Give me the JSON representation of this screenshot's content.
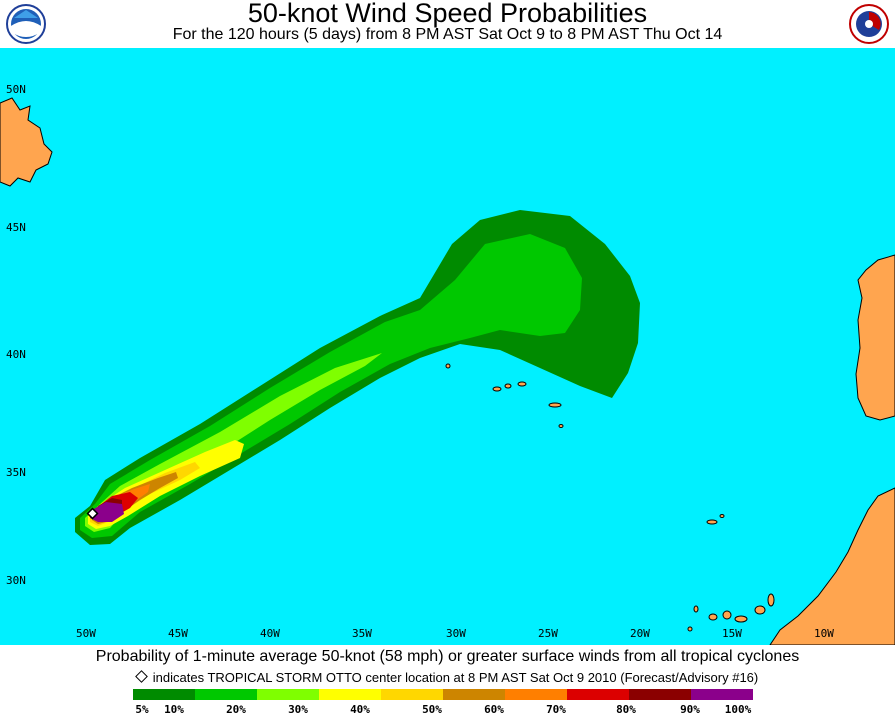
{
  "title": "50-knot Wind Speed Probabilities",
  "subtitle": "For the 120 hours (5 days) from 8 PM AST Sat Oct 9 to 8 PM AST Thu Oct 14",
  "map": {
    "ocean_color": "#00f0ff",
    "land_color": "#ffa54f",
    "latitudes": [
      "50N",
      "45N",
      "40N",
      "35N",
      "30N"
    ],
    "longitudes": [
      "50W",
      "45W",
      "40W",
      "35W",
      "30W",
      "25W",
      "20W",
      "15W",
      "10W"
    ]
  },
  "caption": "Probability of 1-minute average 50-knot (58 mph) or greater surface winds from all tropical cyclones",
  "note": "indicates TROPICAL STORM OTTO center location at 8 PM AST Sat Oct 9 2010 (Forecast/Advisory #16)",
  "legend": {
    "colors": [
      "#008b00",
      "#00c800",
      "#7fff00",
      "#ffff00",
      "#ffd700",
      "#cd8500",
      "#ff7f00",
      "#dc0000",
      "#8b0000",
      "#8b008b"
    ],
    "labels": [
      "5%",
      "10%",
      "20%",
      "30%",
      "40%",
      "50%",
      "60%",
      "70%",
      "80%",
      "90%",
      "100%"
    ]
  }
}
